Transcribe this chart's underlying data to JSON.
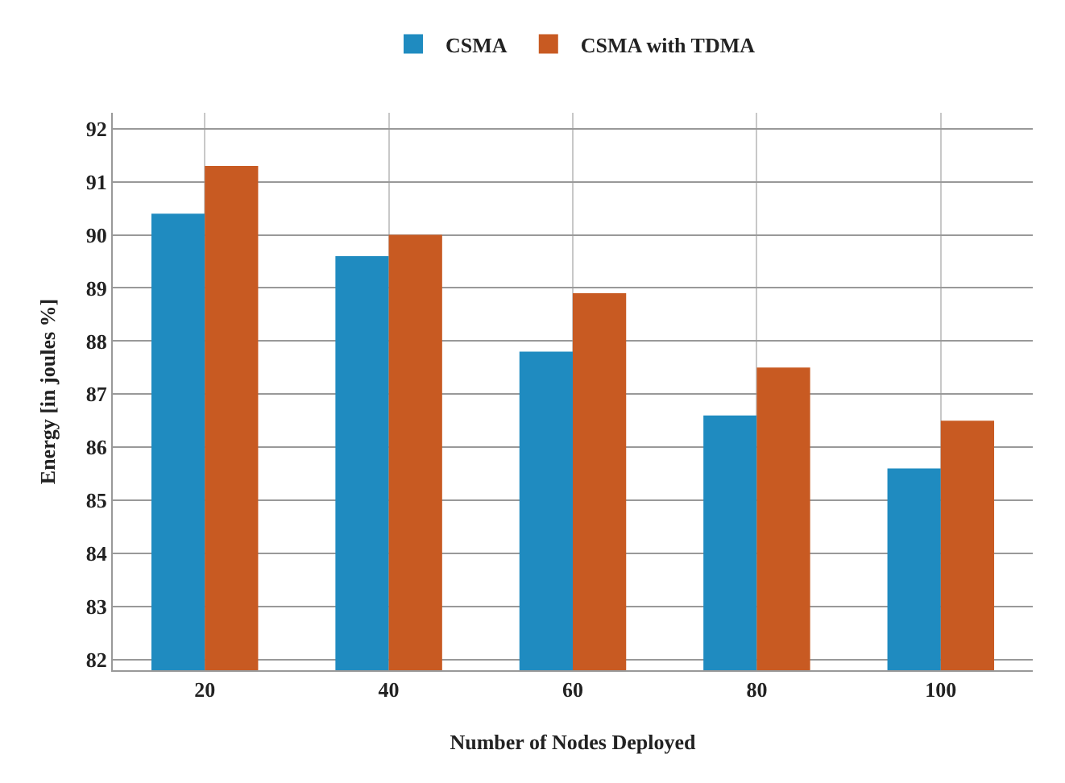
{
  "chart_data": {
    "type": "bar",
    "xlabel": "Number of Nodes Deployed",
    "ylabel": "Energy [in joules %]",
    "categories": [
      "20",
      "40",
      "60",
      "80",
      "100"
    ],
    "series": [
      {
        "name": "CSMA",
        "color": "#1f8bc0",
        "values": [
          90.4,
          89.6,
          87.8,
          86.6,
          85.6
        ]
      },
      {
        "name": "CSMA with TDMA",
        "color": "#c85a22",
        "values": [
          91.3,
          90.0,
          88.9,
          87.5,
          86.5
        ]
      }
    ],
    "ylim": [
      81.8,
      92.3
    ],
    "yticks": [
      82,
      83,
      84,
      85,
      86,
      87,
      88,
      89,
      90,
      91,
      92
    ],
    "grid": true,
    "legend": "top"
  }
}
